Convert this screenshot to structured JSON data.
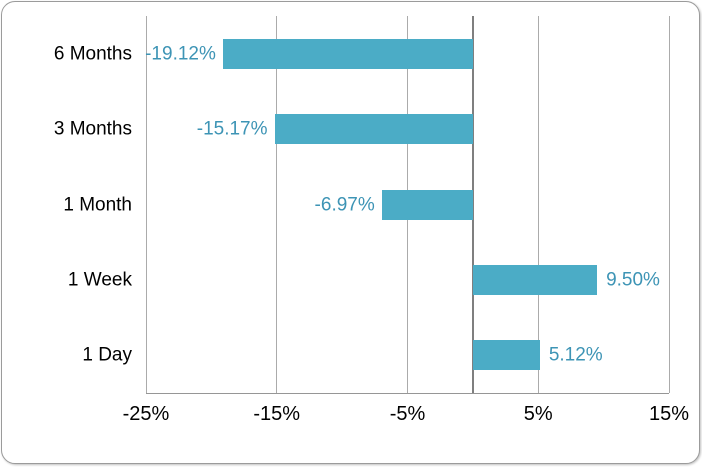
{
  "chart_data": {
    "type": "bar",
    "orientation": "horizontal",
    "title": "",
    "legend": "none",
    "grid": true,
    "categories": [
      "6 Months",
      "3 Months",
      "1 Month",
      "1 Week",
      "1 Day"
    ],
    "values": [
      -19.12,
      -15.17,
      -6.97,
      9.5,
      5.12
    ],
    "value_labels": [
      "-19.12%",
      "-15.17%",
      "-6.97%",
      "9.50%",
      "5.12%"
    ],
    "value_label_position": "outside-end",
    "x_axis": {
      "xlim": [
        -25,
        15
      ],
      "tick_values": [
        -25,
        -15,
        -5,
        5,
        15
      ],
      "tick_labels": [
        "-25%",
        "-15%",
        "-5%",
        "5%",
        "15%"
      ]
    },
    "colors": {
      "bar": "#4BACC6",
      "value_label": "#3D94B5",
      "category_label": "#000000",
      "tick_label": "#000000",
      "gridline": "#ABABAB",
      "zero_line": "#7F7F7F",
      "axis_line": "#969696",
      "border": "#9B9B9B",
      "background": "#FFFFFF"
    }
  }
}
